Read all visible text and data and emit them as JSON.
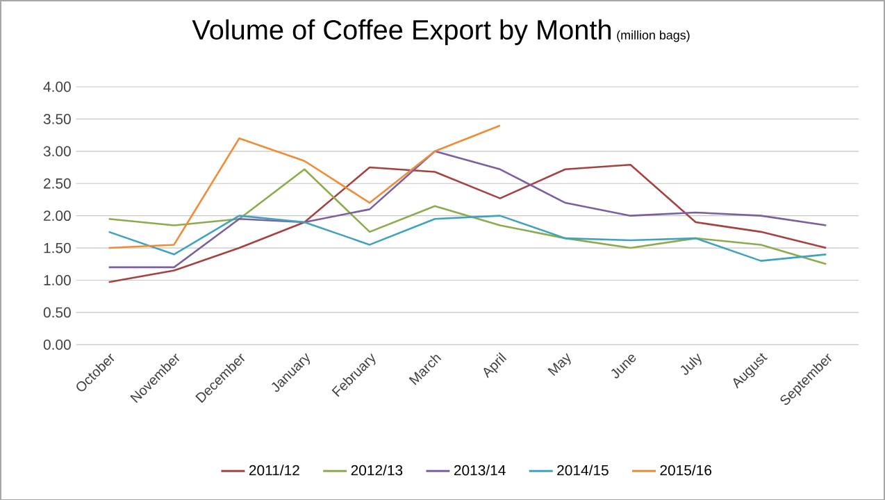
{
  "chart_data": {
    "type": "line",
    "title": "Volume of Coffee Export by Month",
    "subtitle": "(million bags)",
    "categories": [
      "October",
      "November",
      "December",
      "January",
      "February",
      "March",
      "April",
      "May",
      "June",
      "July",
      "August",
      "September"
    ],
    "series": [
      {
        "name": "2011/12",
        "color": "#a5423f",
        "values": [
          0.97,
          1.15,
          1.5,
          1.9,
          2.75,
          2.68,
          2.27,
          2.72,
          2.79,
          1.9,
          1.75,
          1.5
        ]
      },
      {
        "name": "2012/13",
        "color": "#8cab4c",
        "values": [
          1.95,
          1.85,
          1.95,
          2.72,
          1.75,
          2.15,
          1.85,
          1.65,
          1.5,
          1.65,
          1.55,
          1.25
        ]
      },
      {
        "name": "2013/14",
        "color": "#7c5f9e",
        "values": [
          1.2,
          1.2,
          1.95,
          1.9,
          2.1,
          3.0,
          2.72,
          2.2,
          2.0,
          2.05,
          2.0,
          1.85
        ]
      },
      {
        "name": "2014/15",
        "color": "#3fa3bf",
        "values": [
          1.75,
          1.4,
          2.0,
          1.9,
          1.55,
          1.95,
          2.0,
          1.65,
          1.62,
          1.65,
          1.3,
          1.4
        ]
      },
      {
        "name": "2015/16",
        "color": "#f08b36",
        "values": [
          1.5,
          1.55,
          3.2,
          2.85,
          2.2,
          3.0,
          3.4,
          null,
          null,
          null,
          null,
          null
        ]
      }
    ],
    "ylim": [
      0,
      4
    ],
    "yticks": [
      {
        "value": 0,
        "label": "0.00"
      },
      {
        "value": 0.5,
        "label": "0.50"
      },
      {
        "value": 1,
        "label": "1.00"
      },
      {
        "value": 1.5,
        "label": "1.50"
      },
      {
        "value": 2,
        "label": "2.00"
      },
      {
        "value": 2.5,
        "label": "2.50"
      },
      {
        "value": 3,
        "label": "3.00"
      },
      {
        "value": 3.5,
        "label": "3.50"
      },
      {
        "value": 4,
        "label": "4.00"
      }
    ],
    "grid": "y",
    "legend": "bottom",
    "marker": "none",
    "line_style": "solid"
  }
}
